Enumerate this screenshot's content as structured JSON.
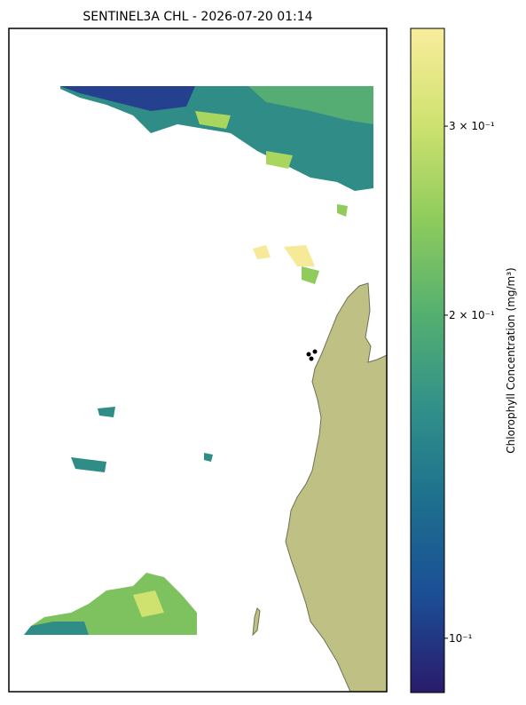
{
  "chart_data": {
    "type": "map",
    "title": "SENTINEL3A CHL - 2026-07-20 01:14",
    "colorbar": {
      "label": "Chlorophyll Concentration (mg/m³)",
      "log": true,
      "lim": [
        0.089,
        0.37
      ],
      "ticks": [
        {
          "value": 0.1,
          "label": "10⁻¹"
        },
        {
          "value": 0.2,
          "label": "2 × 10⁻¹"
        },
        {
          "value": 0.3,
          "label": "3 × 10⁻¹"
        }
      ],
      "colormap": [
        "#2a1b6b",
        "#1c4d96",
        "#1d6f8e",
        "#31908a",
        "#55b06f",
        "#8fcc5c",
        "#cfe270",
        "#f9ed9c"
      ]
    },
    "land_color": "#bfc083"
  }
}
